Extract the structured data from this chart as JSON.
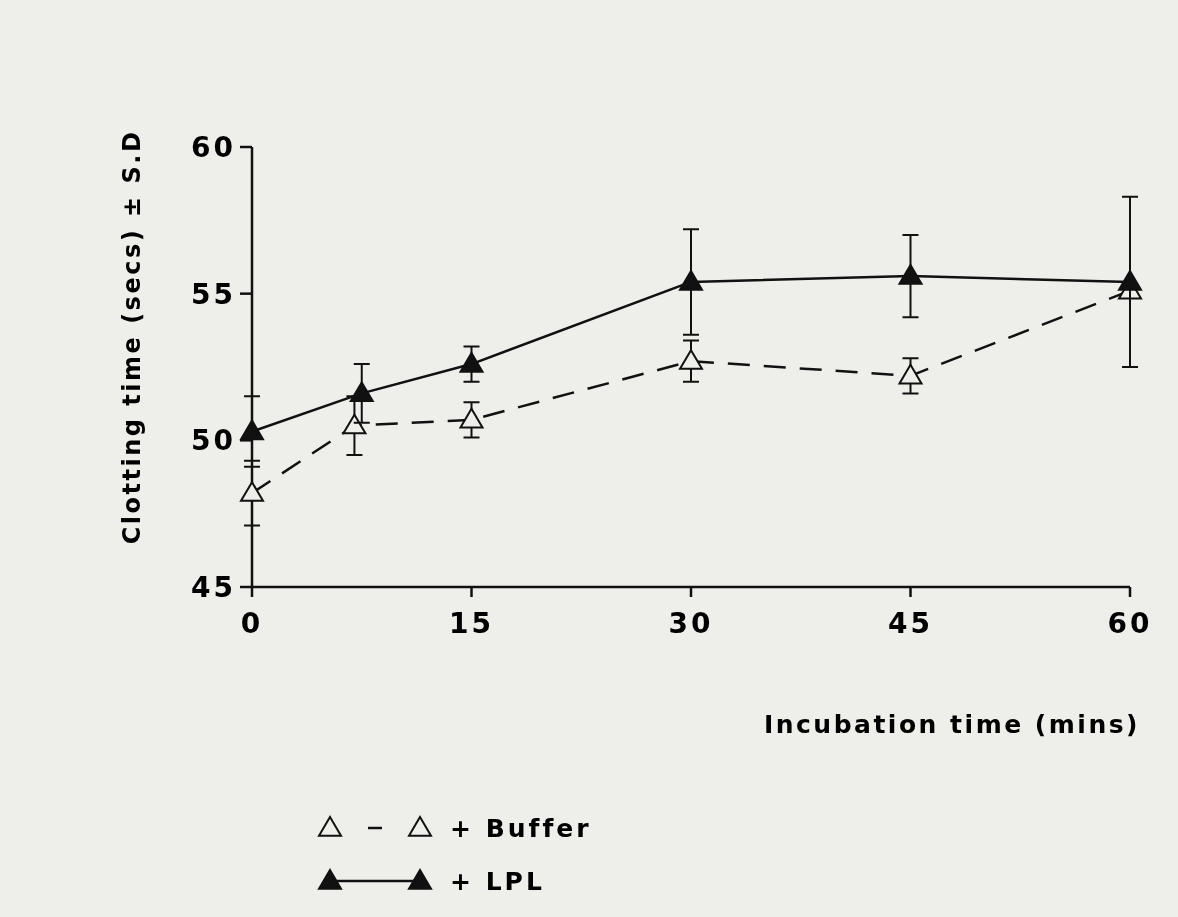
{
  "chart_data": {
    "type": "line",
    "xlabel": "Incubation time (mins)",
    "ylabel": "Clotting time (secs) ± S.D",
    "xlim": [
      0,
      60
    ],
    "xticks": [
      0,
      15,
      30,
      45,
      60
    ],
    "ylim": [
      45,
      60
    ],
    "yticks": [
      45,
      50,
      55,
      60
    ],
    "grid": false,
    "legend": "bottom left",
    "series": [
      {
        "name": "+ Buffer",
        "color": "#111111",
        "marker": "triangle",
        "line_style": "dashed",
        "x": [
          0,
          7,
          15,
          30,
          45,
          60
        ],
        "values": [
          48.2,
          50.5,
          50.7,
          52.7,
          52.2,
          55.1
        ],
        "errors": [
          1.1,
          1.0,
          0.6,
          0.7,
          0.6,
          null
        ]
      },
      {
        "name": "+ LPL",
        "color": "#111111",
        "marker": "triangle",
        "line_style": "solid",
        "x": [
          0,
          7.5,
          15,
          30,
          45,
          60
        ],
        "values": [
          50.3,
          51.6,
          52.6,
          55.4,
          55.6,
          55.4
        ],
        "errors": [
          1.2,
          1.0,
          0.6,
          1.8,
          1.4,
          2.9
        ]
      }
    ]
  }
}
